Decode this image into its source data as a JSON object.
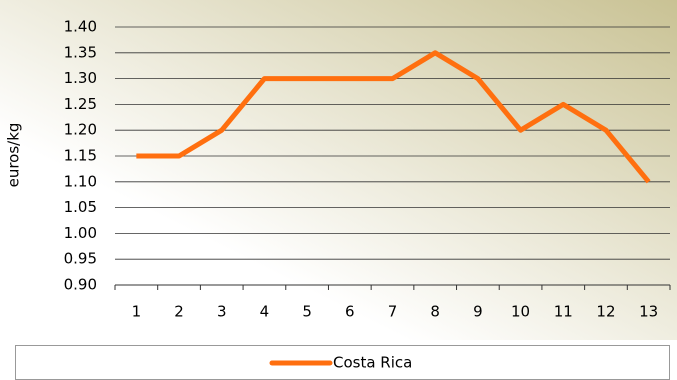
{
  "chart_data": {
    "type": "line",
    "y_label": "euros/kg",
    "categories": [
      "1",
      "2",
      "3",
      "4",
      "5",
      "6",
      "7",
      "8",
      "9",
      "10",
      "11",
      "12",
      "13"
    ],
    "series": [
      {
        "name": "Costa Rica",
        "color": "#ff6f0f",
        "values": [
          1.15,
          1.15,
          1.2,
          1.3,
          1.3,
          1.3,
          1.3,
          1.35,
          1.3,
          1.2,
          1.25,
          1.2,
          1.1
        ]
      }
    ],
    "ylim": [
      0.9,
      1.4
    ],
    "yticks": [
      {
        "value": 0.9,
        "label": "0.90"
      },
      0.95,
      {
        "value": 1.0,
        "label": "1.00"
      },
      1.05,
      {
        "value": 1.1,
        "label": "1.10"
      },
      1.15,
      {
        "value": 1.2,
        "label": "1.20"
      },
      1.25,
      {
        "value": 1.3,
        "label": "1.30"
      },
      1.35,
      {
        "value": 1.4,
        "label": "1.40"
      }
    ],
    "grid": true,
    "legend": "bottom"
  }
}
